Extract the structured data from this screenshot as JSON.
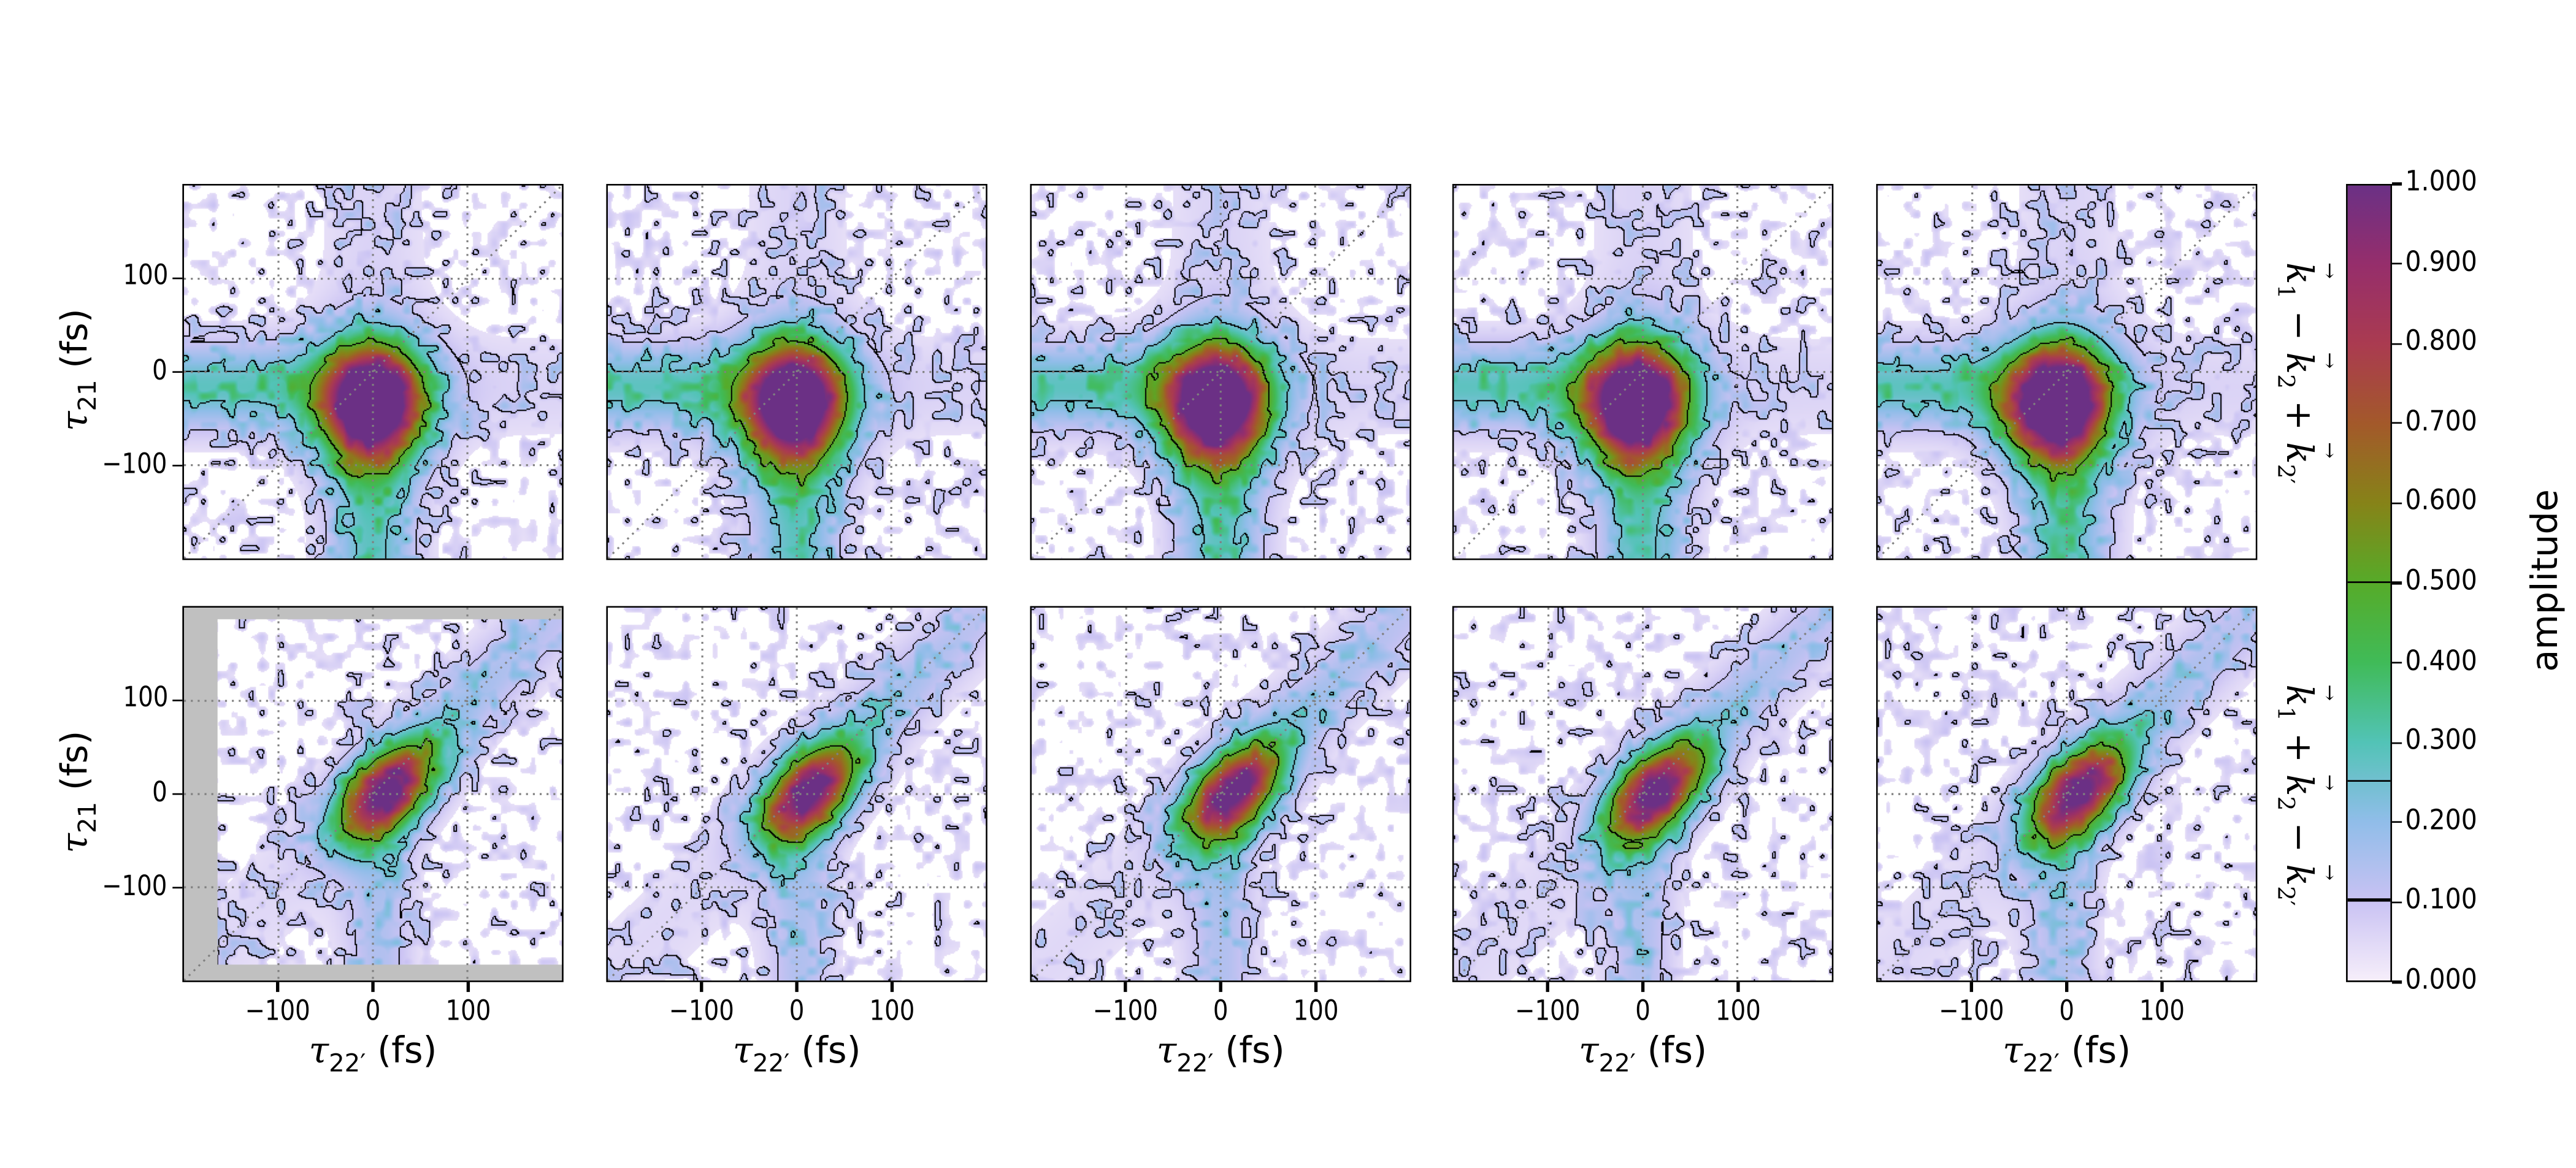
{
  "chart_data": {
    "type": "heatmap",
    "layout": "2 rows x 5 columns",
    "xlim": [
      -200,
      200
    ],
    "ylim": [
      -200,
      200
    ],
    "grid": true,
    "grid_style": "dotted",
    "diagonal_reference_line": true,
    "xticks": [
      "−100",
      "0",
      "100"
    ],
    "yticks": [
      "100",
      "0",
      "−100"
    ],
    "xlabel": {
      "symbol": "τ",
      "sub": "22′",
      "unit": "(fs)"
    },
    "ylabel": {
      "symbol": "τ",
      "sub": "21",
      "unit": "(fs)"
    },
    "contour_levels": [
      0.1,
      0.25,
      0.5
    ],
    "rows": [
      {
        "label_parts": [
          {
            "k": "k",
            "sub": "1"
          },
          {
            "op": " − "
          },
          {
            "k": "k",
            "sub": "2"
          },
          {
            "op": " + "
          },
          {
            "k": "k",
            "sub": "2′"
          }
        ],
        "peak": [
          -10,
          -40
        ],
        "shape": "triangular, extends to negative x and negative y"
      },
      {
        "label_parts": [
          {
            "k": "k",
            "sub": "1"
          },
          {
            "op": " + "
          },
          {
            "k": "k",
            "sub": "2"
          },
          {
            "op": " − "
          },
          {
            "k": "k",
            "sub": "2′"
          }
        ],
        "peak": [
          0,
          0
        ],
        "shape": "elongated along diagonal"
      }
    ],
    "panels_per_row": 5,
    "colorbar": {
      "label": "amplitude",
      "range": [
        0,
        1
      ],
      "ticks": [
        "1.000",
        "0.900",
        "0.800",
        "0.700",
        "0.600",
        "0.500",
        "0.400",
        "0.300",
        "0.200",
        "0.100",
        "0.000"
      ],
      "colormap": [
        [
          0.0,
          "#f6eefa"
        ],
        [
          0.1,
          "#c9c2f3"
        ],
        [
          0.2,
          "#90bde9"
        ],
        [
          0.3,
          "#52c3b6"
        ],
        [
          0.4,
          "#40bb58"
        ],
        [
          0.5,
          "#56ab29"
        ],
        [
          0.6,
          "#868318"
        ],
        [
          0.7,
          "#a3592a"
        ],
        [
          0.8,
          "#aa3b50"
        ],
        [
          0.9,
          "#962e6b"
        ],
        [
          1.0,
          "#6b3085"
        ]
      ],
      "missing_data_color": "#c0c0c0"
    }
  }
}
